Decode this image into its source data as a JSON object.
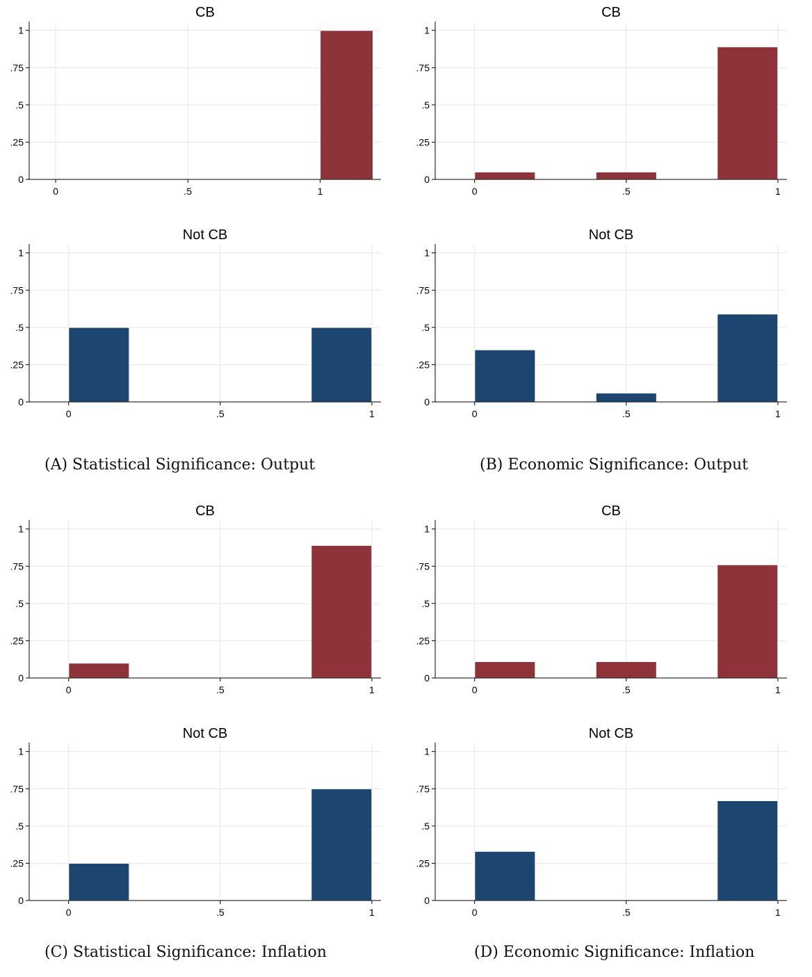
{
  "colors": {
    "cb": "#8f333b",
    "notcb": "#1c4670",
    "grid": "#e6e6e6",
    "axis": "#000000"
  },
  "panels": [
    {
      "caption": "(A) Statistical Significance: Output",
      "charts": [
        {
          "type": "bar",
          "title": "CB",
          "group": "cb",
          "xticks": [
            "0",
            ".5",
            "1"
          ],
          "xtick_values": [
            0,
            0.5,
            1
          ],
          "xlim": [
            -0.1,
            1.23
          ],
          "yticks": [
            "0",
            ".25",
            ".5",
            ".75",
            "1"
          ],
          "ytick_values": [
            0,
            0.25,
            0.5,
            0.75,
            1
          ],
          "ylim": [
            0,
            1.05
          ],
          "bars": [
            {
              "x0": 1.0,
              "x1": 1.2,
              "value": 1.0
            }
          ]
        },
        {
          "type": "bar",
          "title": "Not CB",
          "group": "notcb",
          "xticks": [
            "0",
            ".5",
            "1"
          ],
          "xtick_values": [
            0,
            0.5,
            1
          ],
          "xlim": [
            -0.13,
            1.03
          ],
          "yticks": [
            "0",
            ".25",
            ".5",
            ".75",
            "1"
          ],
          "ytick_values": [
            0,
            0.25,
            0.5,
            0.75,
            1
          ],
          "ylim": [
            0,
            1.05
          ],
          "bars": [
            {
              "x0": 0.0,
              "x1": 0.2,
              "value": 0.5
            },
            {
              "x0": 0.8,
              "x1": 1.0,
              "value": 0.5
            }
          ]
        }
      ]
    },
    {
      "caption": "(B) Economic Significance: Output",
      "charts": [
        {
          "type": "bar",
          "title": "CB",
          "group": "cb",
          "xticks": [
            "0",
            ".5",
            "1"
          ],
          "xtick_values": [
            0,
            0.5,
            1
          ],
          "xlim": [
            -0.13,
            1.03
          ],
          "yticks": [
            "0",
            ".25",
            ".5",
            ".75",
            "1"
          ],
          "ytick_values": [
            0,
            0.25,
            0.5,
            0.75,
            1
          ],
          "ylim": [
            0,
            1.05
          ],
          "bars": [
            {
              "x0": 0.0,
              "x1": 0.2,
              "value": 0.05
            },
            {
              "x0": 0.4,
              "x1": 0.6,
              "value": 0.05
            },
            {
              "x0": 0.8,
              "x1": 1.0,
              "value": 0.89
            }
          ]
        },
        {
          "type": "bar",
          "title": "Not CB",
          "group": "notcb",
          "xticks": [
            "0",
            ".5",
            "1"
          ],
          "xtick_values": [
            0,
            0.5,
            1
          ],
          "xlim": [
            -0.13,
            1.03
          ],
          "yticks": [
            "0",
            ".25",
            ".5",
            ".75",
            "1"
          ],
          "ytick_values": [
            0,
            0.25,
            0.5,
            0.75,
            1
          ],
          "ylim": [
            0,
            1.05
          ],
          "bars": [
            {
              "x0": 0.0,
              "x1": 0.2,
              "value": 0.35
            },
            {
              "x0": 0.4,
              "x1": 0.6,
              "value": 0.06
            },
            {
              "x0": 0.8,
              "x1": 1.0,
              "value": 0.59
            }
          ]
        }
      ]
    },
    {
      "caption": "(C) Statistical Significance: Inflation",
      "charts": [
        {
          "type": "bar",
          "title": "CB",
          "group": "cb",
          "xticks": [
            "0",
            ".5",
            "1"
          ],
          "xtick_values": [
            0,
            0.5,
            1
          ],
          "xlim": [
            -0.13,
            1.03
          ],
          "yticks": [
            "0",
            ".25",
            ".5",
            ".75",
            "1"
          ],
          "ytick_values": [
            0,
            0.25,
            0.5,
            0.75,
            1
          ],
          "ylim": [
            0,
            1.05
          ],
          "bars": [
            {
              "x0": 0.0,
              "x1": 0.2,
              "value": 0.1
            },
            {
              "x0": 0.8,
              "x1": 1.0,
              "value": 0.89
            }
          ]
        },
        {
          "type": "bar",
          "title": "Not CB",
          "group": "notcb",
          "xticks": [
            "0",
            ".5",
            "1"
          ],
          "xtick_values": [
            0,
            0.5,
            1
          ],
          "xlim": [
            -0.13,
            1.03
          ],
          "yticks": [
            "0",
            ".25",
            ".5",
            ".75",
            "1"
          ],
          "ytick_values": [
            0,
            0.25,
            0.5,
            0.75,
            1
          ],
          "ylim": [
            0,
            1.05
          ],
          "bars": [
            {
              "x0": 0.0,
              "x1": 0.2,
              "value": 0.25
            },
            {
              "x0": 0.8,
              "x1": 1.0,
              "value": 0.75
            }
          ]
        }
      ]
    },
    {
      "caption": "(D) Economic Significance: Inflation",
      "charts": [
        {
          "type": "bar",
          "title": "CB",
          "group": "cb",
          "xticks": [
            "0",
            ".5",
            "1"
          ],
          "xtick_values": [
            0,
            0.5,
            1
          ],
          "xlim": [
            -0.13,
            1.03
          ],
          "yticks": [
            "0",
            ".25",
            ".5",
            ".75",
            "1"
          ],
          "ytick_values": [
            0,
            0.25,
            0.5,
            0.75,
            1
          ],
          "ylim": [
            0,
            1.05
          ],
          "bars": [
            {
              "x0": 0.0,
              "x1": 0.2,
              "value": 0.11
            },
            {
              "x0": 0.4,
              "x1": 0.6,
              "value": 0.11
            },
            {
              "x0": 0.8,
              "x1": 1.0,
              "value": 0.76
            }
          ]
        },
        {
          "type": "bar",
          "title": "Not CB",
          "group": "notcb",
          "xticks": [
            "0",
            ".5",
            "1"
          ],
          "xtick_values": [
            0,
            0.5,
            1
          ],
          "xlim": [
            -0.13,
            1.03
          ],
          "yticks": [
            "0",
            ".25",
            ".5",
            ".75",
            "1"
          ],
          "ytick_values": [
            0,
            0.25,
            0.5,
            0.75,
            1
          ],
          "ylim": [
            0,
            1.05
          ],
          "bars": [
            {
              "x0": 0.0,
              "x1": 0.2,
              "value": 0.33
            },
            {
              "x0": 0.8,
              "x1": 1.0,
              "value": 0.67
            }
          ]
        }
      ]
    }
  ],
  "chart_data": [
    {
      "type": "bar",
      "panel": "A",
      "title": "CB",
      "bin_edges": [
        1.0,
        1.2
      ],
      "values": [
        1.0
      ],
      "xlim": [
        -0.1,
        1.23
      ],
      "ylim": [
        0,
        1.05
      ]
    },
    {
      "type": "bar",
      "panel": "A",
      "title": "Not CB",
      "bin_edges": [
        [
          0.0,
          0.2
        ],
        [
          0.8,
          1.0
        ]
      ],
      "values": [
        0.5,
        0.5
      ],
      "xlim": [
        -0.13,
        1.03
      ],
      "ylim": [
        0,
        1.05
      ]
    },
    {
      "type": "bar",
      "panel": "B",
      "title": "CB",
      "bin_edges": [
        [
          0.0,
          0.2
        ],
        [
          0.4,
          0.6
        ],
        [
          0.8,
          1.0
        ]
      ],
      "values": [
        0.05,
        0.05,
        0.89
      ],
      "xlim": [
        -0.13,
        1.03
      ],
      "ylim": [
        0,
        1.05
      ]
    },
    {
      "type": "bar",
      "panel": "B",
      "title": "Not CB",
      "bin_edges": [
        [
          0.0,
          0.2
        ],
        [
          0.4,
          0.6
        ],
        [
          0.8,
          1.0
        ]
      ],
      "values": [
        0.35,
        0.06,
        0.59
      ],
      "xlim": [
        -0.13,
        1.03
      ],
      "ylim": [
        0,
        1.05
      ]
    },
    {
      "type": "bar",
      "panel": "C",
      "title": "CB",
      "bin_edges": [
        [
          0.0,
          0.2
        ],
        [
          0.8,
          1.0
        ]
      ],
      "values": [
        0.1,
        0.89
      ],
      "xlim": [
        -0.13,
        1.03
      ],
      "ylim": [
        0,
        1.05
      ]
    },
    {
      "type": "bar",
      "panel": "C",
      "title": "Not CB",
      "bin_edges": [
        [
          0.0,
          0.2
        ],
        [
          0.8,
          1.0
        ]
      ],
      "values": [
        0.25,
        0.75
      ],
      "xlim": [
        -0.13,
        1.03
      ],
      "ylim": [
        0,
        1.05
      ]
    },
    {
      "type": "bar",
      "panel": "D",
      "title": "CB",
      "bin_edges": [
        [
          0.0,
          0.2
        ],
        [
          0.4,
          0.6
        ],
        [
          0.8,
          1.0
        ]
      ],
      "values": [
        0.11,
        0.11,
        0.76
      ],
      "xlim": [
        -0.13,
        1.03
      ],
      "ylim": [
        0,
        1.05
      ]
    },
    {
      "type": "bar",
      "panel": "D",
      "title": "Not CB",
      "bin_edges": [
        [
          0.0,
          0.2
        ],
        [
          0.8,
          1.0
        ]
      ],
      "values": [
        0.33,
        0.67
      ],
      "xlim": [
        -0.13,
        1.03
      ],
      "ylim": [
        0,
        1.05
      ]
    }
  ]
}
